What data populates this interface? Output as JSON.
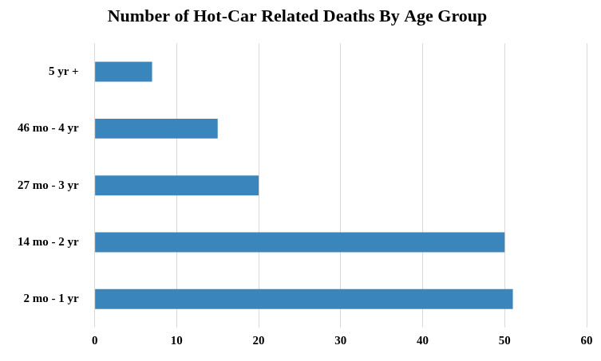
{
  "chart_data": {
    "type": "bar",
    "orientation": "horizontal",
    "title": "Number of Hot-Car Related Deaths By Age Group",
    "categories": [
      "5 yr +",
      "46 mo - 4 yr",
      "27 mo - 3 yr",
      "14 mo - 2 yr",
      "2 mo - 1 yr"
    ],
    "values": [
      7,
      15,
      20,
      50,
      51
    ],
    "color": "#3a86bc",
    "xlim": [
      0,
      60
    ],
    "xticks": [
      0,
      10,
      20,
      30,
      40,
      50,
      60
    ],
    "grid": true
  }
}
